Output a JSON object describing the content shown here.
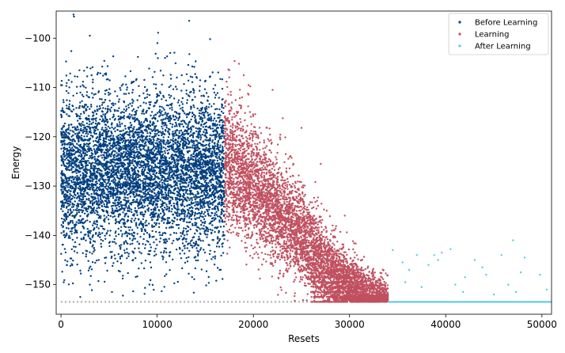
{
  "chart_data": {
    "type": "scatter",
    "xlabel": "Resets",
    "ylabel": "Energy",
    "xlim": [
      -500,
      51000
    ],
    "ylim": [
      -156,
      -94.5
    ],
    "xticks": [
      0,
      10000,
      20000,
      30000,
      40000,
      50000
    ],
    "yticks": [
      -150,
      -140,
      -130,
      -120,
      -110,
      -100
    ],
    "grid": false,
    "legend_position": "top-right",
    "reference_line": {
      "y": -153.5,
      "x_range": [
        0,
        33000
      ],
      "style": "dotted",
      "color": "#aaaaaa"
    },
    "series": [
      {
        "name": "Before Learning",
        "color": "#003f7f",
        "x_range": [
          0,
          17000
        ],
        "y_center": -127,
        "y_spread": 8,
        "y_min": -153,
        "y_max": -95,
        "approx_points": 6000,
        "sample_points": [
          [
            1300,
            -95.2
          ],
          [
            3000,
            -99.5
          ],
          [
            10100,
            -98.9
          ],
          [
            15500,
            -100.2
          ],
          [
            800,
            -108.5
          ],
          [
            4500,
            -104.6
          ],
          [
            8000,
            -103.8
          ],
          [
            14000,
            -104.7
          ],
          [
            2000,
            -152.5
          ],
          [
            9200,
            -150.0
          ],
          [
            6000,
            -147.2
          ],
          [
            16500,
            -147.0
          ]
        ]
      },
      {
        "name": "Learning",
        "color": "#c05060",
        "x_range": [
          17000,
          34000
        ],
        "trend": [
          [
            17000,
            -125
          ],
          [
            20000,
            -130
          ],
          [
            24000,
            -138
          ],
          [
            28000,
            -147
          ],
          [
            31000,
            -152
          ],
          [
            34000,
            -153.5
          ]
        ],
        "y_spread": 7,
        "y_floor": -153.5,
        "approx_points": 5500,
        "sample_points": [
          [
            17500,
            -106.5
          ],
          [
            18500,
            -105.2
          ],
          [
            19000,
            -107.5
          ],
          [
            22000,
            -110.5
          ],
          [
            25000,
            -118.2
          ],
          [
            27000,
            -125.5
          ],
          [
            29500,
            -136.0
          ],
          [
            31500,
            -148.0
          ],
          [
            32500,
            -150.5
          ]
        ]
      },
      {
        "name": "After Learning",
        "color": "#5bc8e6",
        "x_range": [
          34000,
          51000
        ],
        "floor_y": -153.5,
        "sparse_points": [
          [
            34500,
            -143.0
          ],
          [
            35500,
            -145.5
          ],
          [
            36200,
            -147.0
          ],
          [
            37000,
            -144.0
          ],
          [
            37500,
            -150.5
          ],
          [
            38200,
            -146.0
          ],
          [
            38800,
            -144.0
          ],
          [
            39200,
            -145.0
          ],
          [
            39600,
            -143.5
          ],
          [
            40500,
            -142.8
          ],
          [
            41000,
            -150.0
          ],
          [
            42000,
            -148.5
          ],
          [
            43000,
            -145.0
          ],
          [
            43800,
            -146.5
          ],
          [
            44200,
            -148.0
          ],
          [
            45000,
            -152.0
          ],
          [
            45800,
            -144.0
          ],
          [
            46500,
            -150.0
          ],
          [
            47000,
            -141.0
          ],
          [
            47300,
            -151.5
          ],
          [
            47800,
            -147.5
          ],
          [
            48200,
            -144.5
          ],
          [
            49800,
            -148.0
          ],
          [
            50500,
            -151.0
          ],
          [
            35800,
            -149.5
          ],
          [
            41800,
            -151.5
          ]
        ]
      }
    ]
  }
}
